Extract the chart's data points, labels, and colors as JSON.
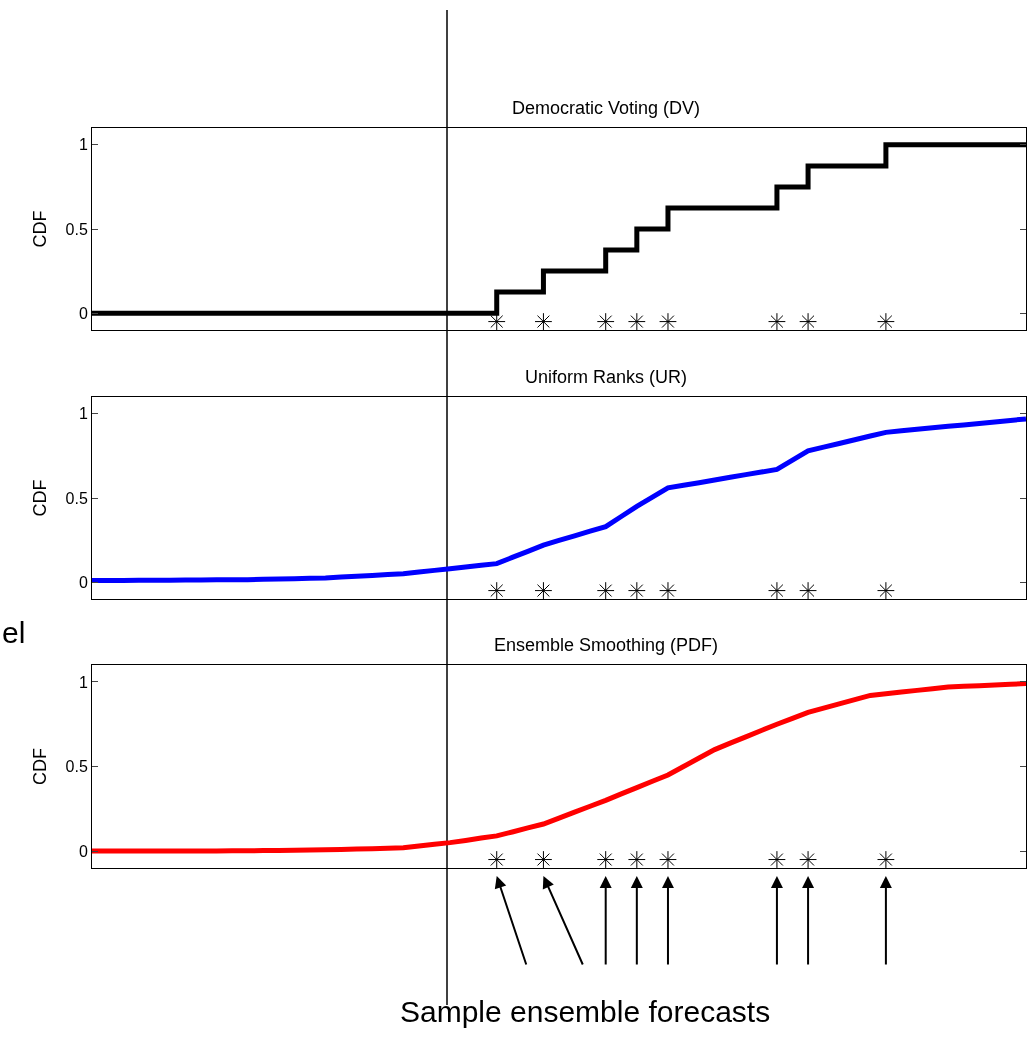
{
  "chart_data": [
    {
      "type": "step",
      "title": "Democratic Voting (DV)",
      "ylabel": "CDF",
      "categories": [
        null,
        null,
        null,
        null,
        null,
        null,
        null,
        null,
        null,
        null,
        null,
        null,
        null,
        null,
        null,
        null,
        null,
        null,
        null,
        null,
        null,
        null,
        null,
        null,
        null,
        null,
        null,
        null,
        null,
        null,
        null,
        null,
        null,
        null,
        null,
        null,
        null,
        null,
        null,
        null,
        null,
        null,
        null,
        null,
        null,
        null,
        null,
        null,
        null,
        null,
        null,
        null,
        null,
        null,
        null,
        null,
        null,
        null,
        null,
        null,
        null
      ],
      "ylim": [
        -0.1,
        1.1
      ],
      "yticks": [
        0,
        0.5,
        1
      ],
      "tick_labels": "y",
      "series": [
        {
          "color": "#000000",
          "values": [
            0,
            0,
            0,
            0,
            0,
            0,
            0,
            0,
            0,
            0,
            0,
            0,
            0,
            0,
            0,
            0,
            0,
            0,
            0,
            0,
            0,
            0,
            0,
            0,
            0,
            0,
            0.125,
            0.125,
            0.125,
            0.25,
            0.25,
            0.25,
            0.25,
            0.375,
            0.375,
            0.5,
            0.5,
            0.625,
            0.625,
            0.625,
            0.625,
            0.625,
            0.625,
            0.625,
            0.75,
            0.75,
            0.875,
            0.875,
            0.875,
            0.875,
            0.875,
            1,
            1,
            1,
            1,
            1,
            1,
            1,
            1,
            1,
            1
          ]
        },
        {
          "type": "scatter",
          "marker": "cross",
          "color": "#000000",
          "values": [
            null,
            null,
            null,
            null,
            null,
            null,
            null,
            null,
            null,
            null,
            null,
            null,
            null,
            null,
            null,
            null,
            null,
            null,
            null,
            null,
            null,
            null,
            null,
            null,
            null,
            null,
            -0.05,
            null,
            null,
            -0.05,
            null,
            null,
            null,
            -0.05,
            null,
            -0.05,
            null,
            -0.05,
            null,
            null,
            null,
            null,
            null,
            null,
            -0.05,
            null,
            -0.05,
            null,
            null,
            null,
            null,
            -0.05,
            null,
            null,
            null,
            null,
            null,
            null,
            null,
            null,
            null
          ]
        }
      ]
    },
    {
      "type": "line",
      "title": "Uniform Ranks (UR)",
      "ylabel": "CDF",
      "categories": [
        null,
        null,
        null,
        null,
        null,
        null,
        null,
        null,
        null,
        null,
        null,
        null,
        null,
        null,
        null,
        null,
        null,
        null,
        null,
        null,
        null,
        null,
        null,
        null,
        null,
        null,
        null,
        null,
        null,
        null,
        null,
        null,
        null,
        null,
        null,
        null,
        null,
        null,
        null,
        null,
        null,
        null,
        null,
        null,
        null,
        null,
        null,
        null,
        null,
        null,
        null,
        null,
        null,
        null,
        null,
        null,
        null,
        null,
        null,
        null,
        null
      ],
      "ylim": [
        -0.1,
        1.1
      ],
      "yticks": [
        0,
        0.5,
        1
      ],
      "tick_labels": "y",
      "annotations": [
        "el"
      ],
      "series": [
        {
          "color": "#0000ff",
          "values": [
            0.01,
            0.01,
            0.01,
            0.011,
            0.012,
            0.012,
            0.013,
            0.013,
            0.014,
            0.014,
            0.015,
            0.017,
            0.019,
            0.021,
            0.023,
            0.025,
            0.03,
            0.035,
            0.04,
            0.045,
            0.05,
            0.06,
            0.07,
            0.08,
            0.09,
            0.1,
            0.11,
            0.147,
            0.183,
            0.22,
            0.248,
            0.275,
            0.303,
            0.33,
            0.39,
            0.45,
            0.505,
            0.56,
            0.576,
            0.591,
            0.607,
            0.623,
            0.639,
            0.654,
            0.67,
            0.725,
            0.78,
            0.802,
            0.824,
            0.846,
            0.868,
            0.89,
            0.899,
            0.908,
            0.917,
            0.926,
            0.934,
            0.943,
            0.952,
            0.961,
            0.97
          ]
        },
        {
          "type": "scatter",
          "marker": "cross",
          "color": "#000000",
          "values": [
            null,
            null,
            null,
            null,
            null,
            null,
            null,
            null,
            null,
            null,
            null,
            null,
            null,
            null,
            null,
            null,
            null,
            null,
            null,
            null,
            null,
            null,
            null,
            null,
            null,
            null,
            -0.05,
            null,
            null,
            -0.05,
            null,
            null,
            null,
            -0.05,
            null,
            -0.05,
            null,
            -0.05,
            null,
            null,
            null,
            null,
            null,
            null,
            -0.05,
            null,
            -0.05,
            null,
            null,
            null,
            null,
            -0.05,
            null,
            null,
            null,
            null,
            null,
            null,
            null,
            null,
            null
          ]
        }
      ]
    },
    {
      "type": "line",
      "title": "Ensemble Smoothing (PDF)",
      "ylabel": "CDF",
      "categories": [
        null,
        null,
        null,
        null,
        null,
        null,
        null,
        null,
        null,
        null,
        null,
        null,
        null,
        null,
        null,
        null,
        null,
        null,
        null,
        null,
        null,
        null,
        null,
        null,
        null,
        null,
        null,
        null,
        null,
        null,
        null,
        null,
        null,
        null,
        null,
        null,
        null,
        null,
        null,
        null,
        null,
        null,
        null,
        null,
        null,
        null,
        null,
        null,
        null,
        null,
        null,
        null,
        null,
        null,
        null,
        null,
        null,
        null,
        null,
        null,
        null
      ],
      "ylim": [
        -0.1,
        1.1
      ],
      "yticks": [
        0,
        0.5,
        1
      ],
      "tick_labels": "y",
      "annotations": [
        "Sample ensemble forecasts"
      ],
      "series": [
        {
          "color": "#ff0000",
          "values": [
            0,
            0,
            0,
            0,
            0,
            0,
            0.001,
            0.001,
            0.001,
            0.002,
            0.002,
            0.003,
            0.004,
            0.005,
            0.006,
            0.008,
            0.01,
            0.012,
            0.014,
            0.017,
            0.02,
            0.03,
            0.04,
            0.05,
            0.063,
            0.077,
            0.09,
            0.113,
            0.137,
            0.16,
            0.195,
            0.23,
            0.265,
            0.3,
            0.338,
            0.375,
            0.413,
            0.45,
            0.5,
            0.55,
            0.6,
            0.638,
            0.675,
            0.713,
            0.75,
            0.785,
            0.82,
            0.845,
            0.87,
            0.895,
            0.92,
            0.93,
            0.94,
            0.95,
            0.96,
            0.97,
            0.974,
            0.978,
            0.982,
            0.986,
            0.99
          ]
        },
        {
          "type": "scatter",
          "marker": "cross",
          "color": "#000000",
          "values": [
            null,
            null,
            null,
            null,
            null,
            null,
            null,
            null,
            null,
            null,
            null,
            null,
            null,
            null,
            null,
            null,
            null,
            null,
            null,
            null,
            null,
            null,
            null,
            null,
            null,
            null,
            -0.05,
            null,
            null,
            -0.05,
            null,
            null,
            null,
            -0.05,
            null,
            -0.05,
            null,
            -0.05,
            null,
            null,
            null,
            null,
            null,
            null,
            -0.05,
            null,
            -0.05,
            null,
            null,
            null,
            null,
            -0.05,
            null,
            null,
            null,
            null,
            null,
            null,
            null,
            null,
            null
          ]
        }
      ]
    }
  ]
}
